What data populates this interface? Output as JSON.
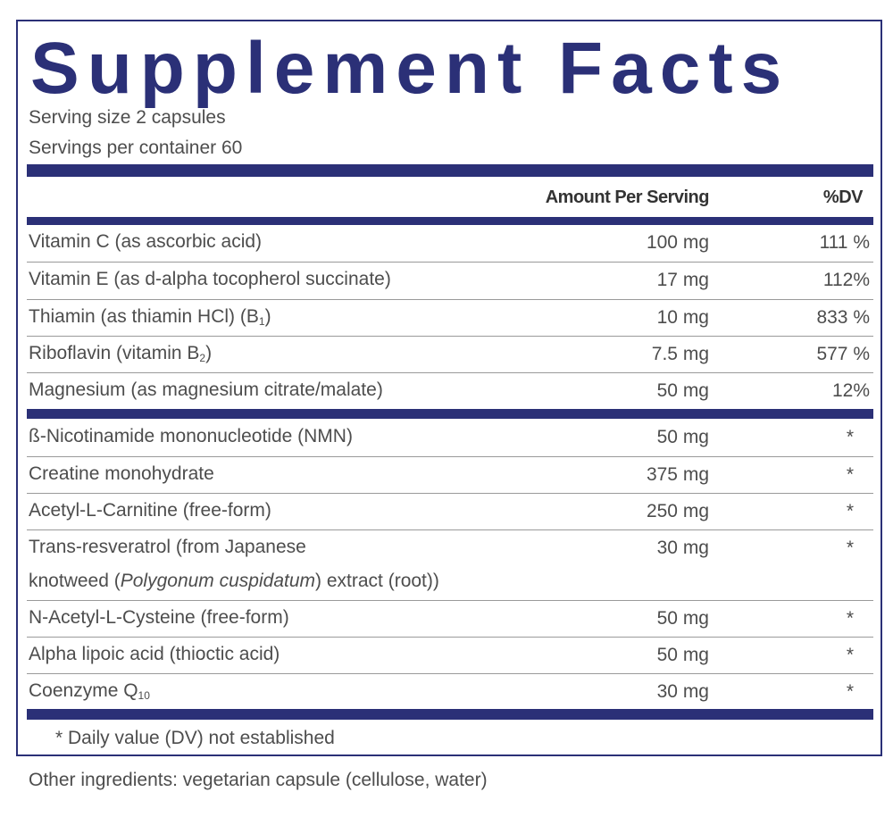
{
  "title": "Supplement Facts",
  "serving_size": "Serving size  2 capsules",
  "servings_per_container": "Servings per container  60",
  "header": {
    "amount": "Amount Per Serving",
    "dv": "%DV"
  },
  "sections": [
    {
      "rows": [
        {
          "name": [
            "Vitamin C (as ascorbic acid)"
          ],
          "amount": "100 mg",
          "dv": "111 %"
        },
        {
          "name": [
            "Vitamin E (as d-alpha tocopherol succinate)"
          ],
          "amount": "17 mg",
          "dv": "112%"
        },
        {
          "name": [
            "Thiamin (as thiamin HCl) (B",
            "1",
            ")"
          ],
          "amount": "10 mg",
          "dv": "833 %"
        },
        {
          "name": [
            "Riboflavin (vitamin B",
            "2",
            ")"
          ],
          "amount": "7.5 mg",
          "dv": "577 %"
        },
        {
          "name": [
            "Magnesium (as magnesium citrate/malate)"
          ],
          "amount": "50 mg",
          "dv": "12%"
        }
      ]
    },
    {
      "rows": [
        {
          "name": [
            "ß-Nicotinamide mononucleotide (NMN)"
          ],
          "amount": "50 mg",
          "dv": "*"
        },
        {
          "name": [
            "Creatine monohydrate"
          ],
          "amount": "375 mg",
          "dv": "*"
        },
        {
          "name": [
            "Acetyl-L-Carnitine (free-form)"
          ],
          "amount": "250 mg",
          "dv": "*"
        },
        {
          "name": [
            "Trans-resveratrol  (from Japanese",
            "knotweed (",
            "Polygonum cuspidatum",
            ") extract (root))"
          ],
          "amount": "30 mg",
          "dv": "*"
        },
        {
          "name": [
            "N-Acetyl-L-Cysteine (free-form)"
          ],
          "amount": "50 mg",
          "dv": "*"
        },
        {
          "name": [
            "Alpha lipoic acid (thioctic acid)"
          ],
          "amount": "50 mg",
          "dv": "*"
        },
        {
          "name": [
            "Coenzyme Q",
            "10"
          ],
          "amount": "30 mg",
          "dv": "*"
        }
      ]
    }
  ],
  "footnote": "*  Daily value (DV) not established",
  "other_ingredients": "Other ingredients: vegetarian capsule (cellulose, water)"
}
